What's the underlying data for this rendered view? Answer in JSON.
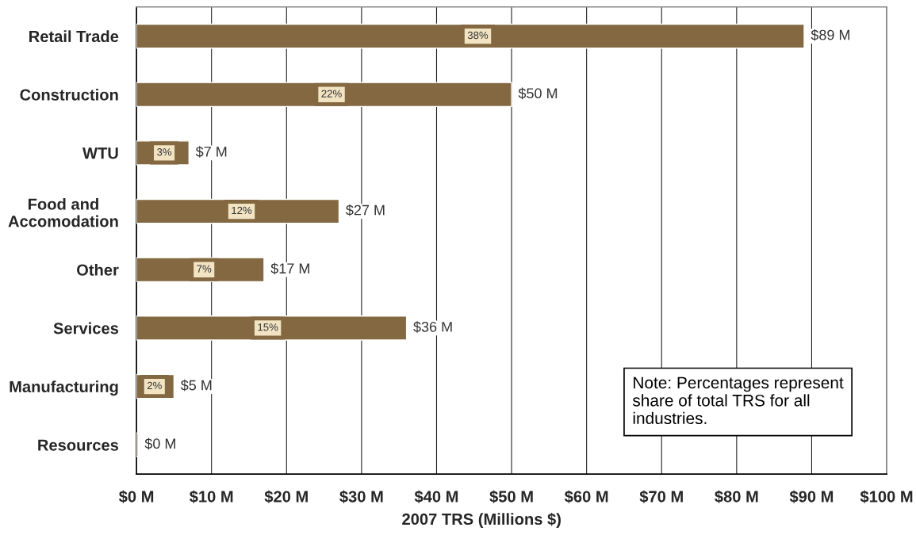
{
  "chart_data": {
    "type": "bar",
    "orientation": "horizontal",
    "xlabel": "2007 TRS (Millions $)",
    "categories": [
      "Retail Trade",
      "Construction",
      "WTU",
      "Food and\nAccomodation",
      "Other",
      "Services",
      "Manufacturing",
      "Resources"
    ],
    "values": [
      89,
      50,
      7,
      27,
      17,
      36,
      5,
      0.2
    ],
    "color": "#836841",
    "value_labels": [
      "$89 M",
      "$50 M",
      "$7 M",
      "$27 M",
      "$17 M",
      "$36 M",
      "$5 M",
      "$0 M"
    ],
    "xlim": [
      0,
      100
    ],
    "xticks": [
      {
        "value": 0,
        "label": "$0 M"
      },
      {
        "value": 10,
        "label": "$10 M"
      },
      {
        "value": 20,
        "label": "$20 M"
      },
      {
        "value": 30,
        "label": "$30 M"
      },
      {
        "value": 40,
        "label": "$40 M"
      },
      {
        "value": 50,
        "label": "$50 M"
      },
      {
        "value": 60,
        "label": "$60 M"
      },
      {
        "value": 70,
        "label": "$70 M"
      },
      {
        "value": 80,
        "label": "$80 M"
      },
      {
        "value": 90,
        "label": "$90 M"
      },
      {
        "value": 100,
        "label": "$100 M"
      }
    ],
    "grid": "x",
    "annotations": [
      {
        "text": "38%",
        "x": 45.5,
        "y": "Retail Trade"
      },
      {
        "text": "22%",
        "x": 26,
        "y": "Construction"
      },
      {
        "text": "3%",
        "x": 3.7,
        "y": "WTU"
      },
      {
        "text": "12%",
        "x": 14,
        "y": "Food and\nAccomodation"
      },
      {
        "text": "7%",
        "x": 9,
        "y": "Other"
      },
      {
        "text": "15%",
        "x": 17.5,
        "y": "Services"
      },
      {
        "text": "2%",
        "x": 2.4,
        "y": "Manufacturing"
      },
      "Note: Percentages represent\nshare of total TRS for all\nindustries."
    ]
  }
}
